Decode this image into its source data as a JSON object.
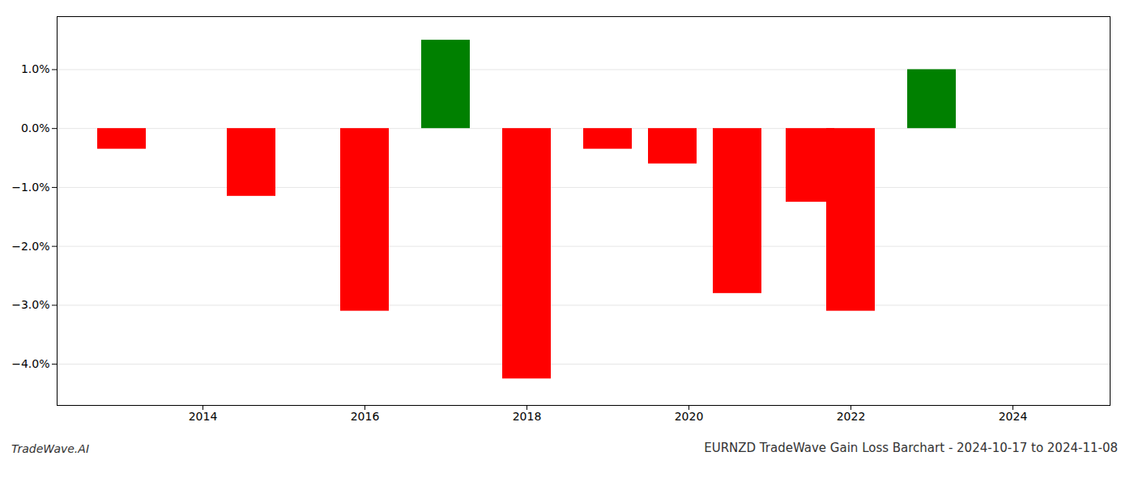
{
  "chart_data": {
    "type": "bar",
    "title": "EURNZD TradeWave Gain Loss Barchart - 2024-10-17 to 2024-11-08",
    "annotations": [
      "TradeWave.AI"
    ],
    "x": [
      2013.0,
      2014.6,
      2016.0,
      2017.0,
      2018.0,
      2019.0,
      2019.8,
      2020.6,
      2021.5,
      2022.0,
      2023.0
    ],
    "values": [
      -0.35,
      -1.15,
      -3.1,
      1.5,
      -4.25,
      -0.35,
      -0.6,
      -2.8,
      -1.25,
      -3.1,
      1.0
    ],
    "colors": [
      "red",
      "red",
      "red",
      "green",
      "red",
      "red",
      "red",
      "red",
      "red",
      "red",
      "green"
    ],
    "xlim": [
      2012.2,
      2025.2
    ],
    "xticks": [
      2014,
      2016,
      2018,
      2020,
      2022,
      2024
    ],
    "ylim": [
      -4.7,
      1.9
    ],
    "yticks": [
      {
        "value": -4.0,
        "label": "−4.0%"
      },
      {
        "value": -3.0,
        "label": "−3.0%"
      },
      {
        "value": -2.0,
        "label": "−2.0%"
      },
      {
        "value": -1.0,
        "label": "−1.0%"
      },
      {
        "value": 0.0,
        "label": "0.0%"
      },
      {
        "value": 1.0,
        "label": "1.0%"
      }
    ],
    "grid": true
  }
}
